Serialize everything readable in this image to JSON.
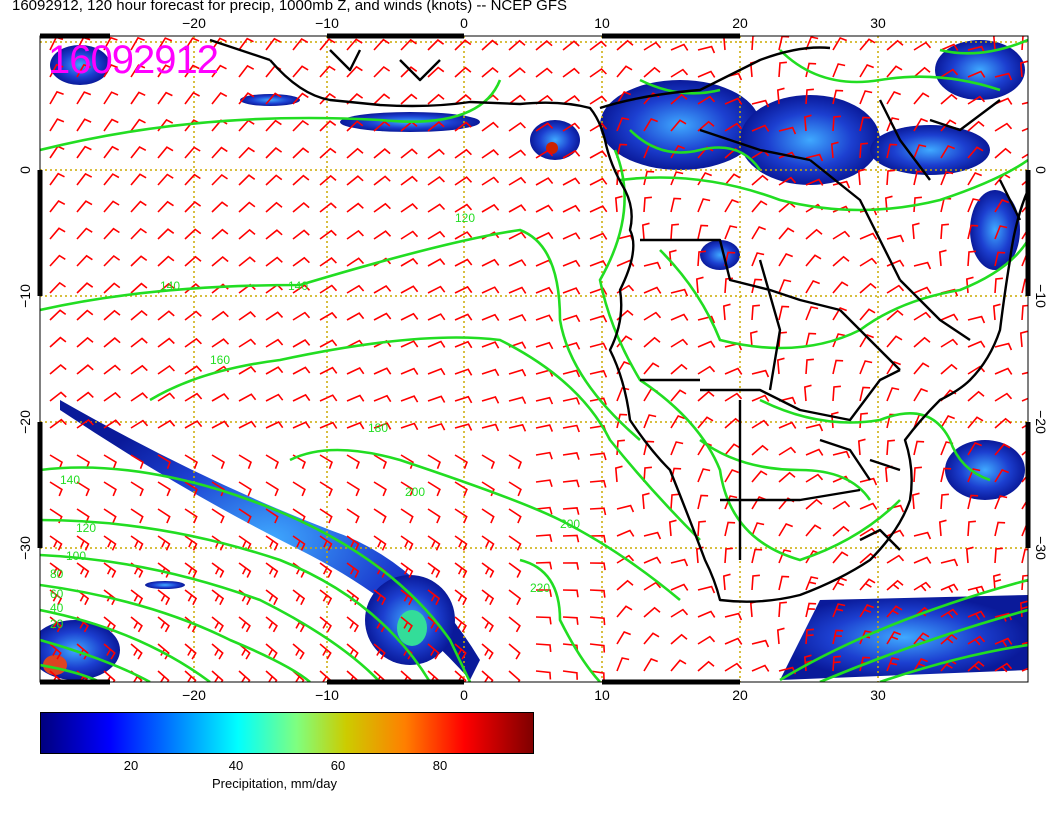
{
  "title": "16092912, 120 hour forecast for precip, 1000mb Z, and winds (knots) -- NCEP GFS",
  "stamp": "16092912",
  "lon_ticks": [
    "−20",
    "−10",
    "0",
    "10",
    "20",
    "30"
  ],
  "lat_ticks": [
    "0",
    "−10",
    "−20",
    "−30"
  ],
  "contour_labels": [
    "120",
    "140",
    "160",
    "180",
    "200",
    "220",
    "140",
    "120",
    "100",
    "80",
    "60",
    "40",
    "20"
  ],
  "colorbar": {
    "ticks": [
      "20",
      "40",
      "60",
      "80"
    ],
    "label": "Precipitation, mm/day"
  },
  "colors": {
    "wind": "#ff0000",
    "contour": "#22dd22",
    "grid": "#ccaa00",
    "stamp": "#ff00ff"
  }
}
